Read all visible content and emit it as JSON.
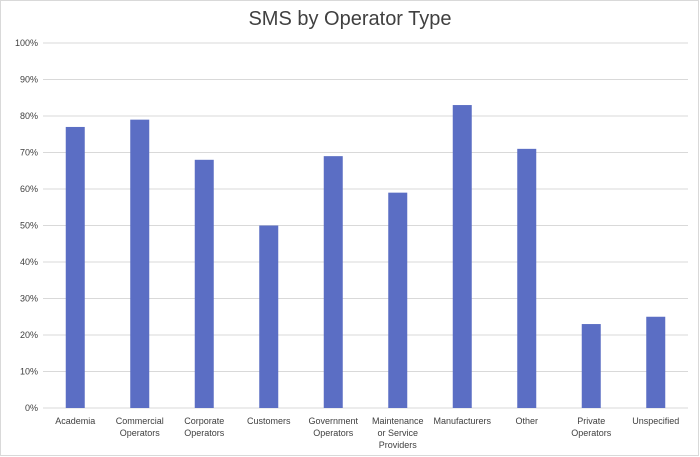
{
  "chart_data": {
    "type": "bar",
    "title": "SMS by Operator Type",
    "categories": [
      "Academia",
      "Commercial Operators",
      "Corporate Operators",
      "Customers",
      "Government Operators",
      "Maintenance or Service Providers",
      "Manufacturers",
      "Other",
      "Private Operators",
      "Unspecified"
    ],
    "category_lines": [
      [
        "Academia"
      ],
      [
        "Commercial",
        "Operators"
      ],
      [
        "Corporate",
        "Operators"
      ],
      [
        "Customers"
      ],
      [
        "Government",
        "Operators"
      ],
      [
        "Maintenance",
        "or Service",
        "Providers"
      ],
      [
        "Manufacturers"
      ],
      [
        "Other"
      ],
      [
        "Private",
        "Operators"
      ],
      [
        "Unspecified"
      ]
    ],
    "values": [
      0.77,
      0.79,
      0.68,
      0.5,
      0.69,
      0.59,
      0.83,
      0.71,
      0.23,
      0.25
    ],
    "ylim": [
      0,
      1
    ],
    "yticks": [
      0,
      0.1,
      0.2,
      0.3,
      0.4,
      0.5,
      0.6,
      0.7,
      0.8,
      0.9,
      1.0
    ],
    "ytick_labels": [
      "0%",
      "10%",
      "20%",
      "30%",
      "40%",
      "50%",
      "60%",
      "70%",
      "80%",
      "90%",
      "100%"
    ],
    "xlabel": "",
    "ylabel": "",
    "grid": true,
    "bar_color": "#5B6EC4",
    "grid_color": "#d9d9d9"
  }
}
